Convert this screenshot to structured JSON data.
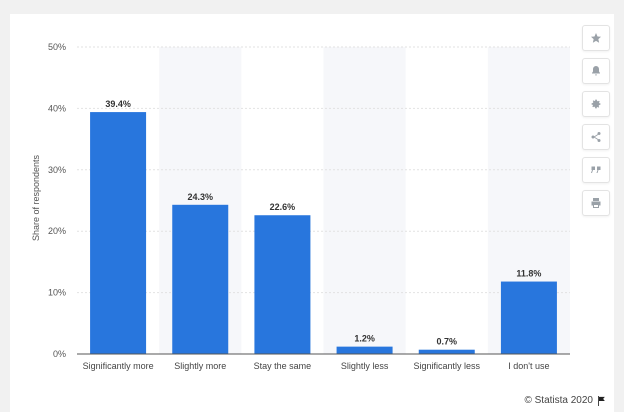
{
  "chart_data": {
    "type": "bar",
    "categories": [
      "Significantly more",
      "Slightly more",
      "Stay the same",
      "Slightly less",
      "Significantly less",
      "I don't use"
    ],
    "values": [
      39.4,
      24.3,
      22.6,
      1.2,
      0.7,
      11.8
    ],
    "value_labels": [
      "39.4%",
      "24.3%",
      "22.6%",
      "1.2%",
      "0.7%",
      "11.8%"
    ],
    "ylabel": "Share of respondents",
    "ylim": [
      0,
      50
    ],
    "yticks": [
      0,
      10,
      20,
      30,
      40,
      50
    ],
    "ytick_labels": [
      "0%",
      "10%",
      "20%",
      "30%",
      "40%",
      "50%"
    ],
    "bar_color": "#2876dd",
    "grid": true
  },
  "toolbar": {
    "buttons": [
      "star-icon",
      "bell-icon",
      "gear-icon",
      "share-icon",
      "quote-icon",
      "print-icon"
    ]
  },
  "footer": {
    "credit": "© Statista 2020"
  }
}
